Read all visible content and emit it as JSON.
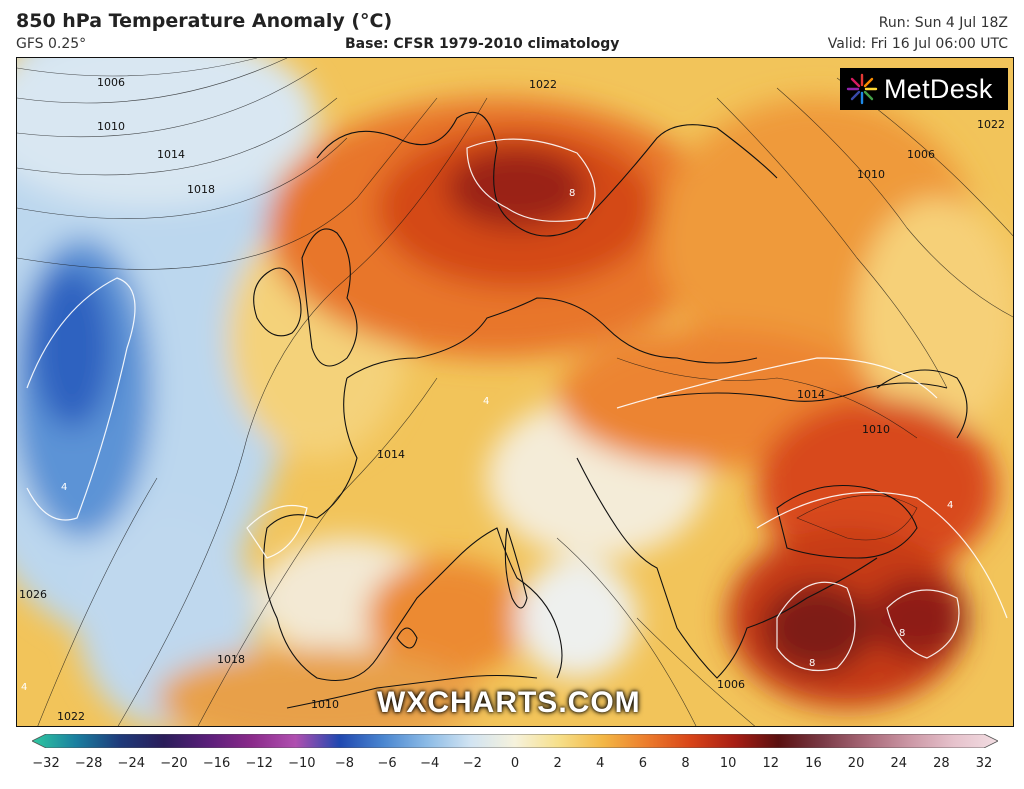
{
  "header": {
    "title": "850 hPa Temperature Anomaly (°C)",
    "model": "GFS 0.25°",
    "base": "Base: CFSR 1979-2010 climatology",
    "run": "Run: Sun 4 Jul 18Z",
    "valid": "Valid: Fri 16 Jul 06:00 UTC"
  },
  "logo": {
    "text": "MetDesk",
    "icon": "starburst-icon"
  },
  "watermark": "WXCHARTS.COM",
  "isobar_labels": [
    "1006",
    "1010",
    "1014",
    "1018",
    "1022",
    "1026",
    "1022",
    "1010",
    "1006",
    "1010",
    "1014",
    "1014",
    "1018",
    "1010",
    "1006",
    "1022"
  ],
  "anomaly_labels": [
    "8",
    "8",
    "8",
    "4",
    "4",
    "4",
    "4"
  ],
  "colorbar": {
    "ticks": [
      "−32",
      "−28",
      "−24",
      "−20",
      "−16",
      "−12",
      "−10",
      "−8",
      "−6",
      "−4",
      "−2",
      "0",
      "2",
      "4",
      "6",
      "8",
      "10",
      "12",
      "16",
      "20",
      "24",
      "28",
      "32"
    ],
    "colors": [
      "#2fc9a0",
      "#1a7fa0",
      "#1e3a7a",
      "#2a1d5a",
      "#5a1f7a",
      "#8a2a8a",
      "#b04fb0",
      "#2048b0",
      "#4a86d0",
      "#8cbbe6",
      "#d2e4f2",
      "#f6f2dc",
      "#f6df8a",
      "#f3b745",
      "#ec7c2c",
      "#d84418",
      "#a81e14",
      "#5a1010",
      "#7a3a46",
      "#a86878",
      "#cc98a6",
      "#e6c2cc",
      "#f2dde2"
    ]
  },
  "colors": {
    "warm_max": "#5a1010",
    "warm": "#e05a1c",
    "mild": "#f7cf5c",
    "neutral": "#f3efe6",
    "cold": "#8fbfe8",
    "cold_max": "#2a5fc4"
  }
}
